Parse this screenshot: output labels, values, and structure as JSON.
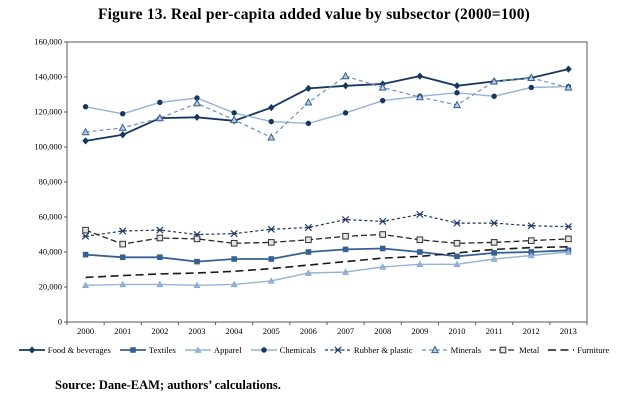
{
  "chart_data": {
    "type": "line",
    "title": "Figure 13. Real per-capita added value by subsector (2000=100)",
    "xlabel": "",
    "ylabel": "",
    "x": [
      2000,
      2001,
      2002,
      2003,
      2004,
      2005,
      2006,
      2007,
      2008,
      2009,
      2010,
      2011,
      2012,
      2013
    ],
    "ylim": [
      0,
      160000
    ],
    "ytick_step": 20000,
    "grid": false,
    "legend_position": "bottom",
    "series": [
      {
        "name": "Food & beverages",
        "color": "#17375E",
        "dash": "solid",
        "width": 1.8,
        "marker": "diamond",
        "marker_color": "#17375E",
        "marker_fill": "#17375E",
        "values": [
          103500,
          107000,
          116500,
          117000,
          115000,
          122500,
          133500,
          135000,
          136000,
          140500,
          135000,
          137500,
          139500,
          144500
        ]
      },
      {
        "name": "Textiles",
        "color": "#376092",
        "dash": "solid",
        "width": 1.8,
        "marker": "square",
        "marker_color": "#376092",
        "marker_fill": "#376092",
        "values": [
          38500,
          37000,
          37000,
          34500,
          36000,
          36000,
          40000,
          41500,
          42000,
          40000,
          37500,
          39500,
          40000,
          41000
        ]
      },
      {
        "name": "Apparel",
        "color": "#95B3D7",
        "dash": "solid",
        "width": 1.4,
        "marker": "triangle",
        "marker_color": "#7BA0CD",
        "marker_fill": "#95B3D7",
        "values": [
          21000,
          21500,
          21500,
          21000,
          21500,
          23500,
          28000,
          28500,
          31500,
          33000,
          33000,
          36000,
          38000,
          40000
        ]
      },
      {
        "name": "Chemicals",
        "color": "#95B3D7",
        "dash": "solid",
        "width": 1.4,
        "marker": "circle",
        "marker_color": "#17375E",
        "marker_fill": "#17375E",
        "values": [
          123000,
          119000,
          125500,
          128000,
          119500,
          114500,
          113500,
          119500,
          126500,
          129000,
          131000,
          129000,
          134000,
          134500
        ]
      },
      {
        "name": "Rubber & plastic",
        "color": "#1F3864",
        "dash": "short-dash",
        "width": 1.2,
        "marker": "asterisk",
        "marker_color": "#1F3864",
        "marker_fill": "none",
        "values": [
          49000,
          52000,
          52500,
          50000,
          50500,
          53000,
          54000,
          58500,
          57500,
          61500,
          56500,
          56500,
          55000,
          54500
        ]
      },
      {
        "name": "Minerals",
        "color": "#6E8EBF",
        "dash": "dash",
        "width": 1.2,
        "marker": "triangle-open",
        "marker_color": "#376092",
        "marker_fill": "#B9CDE5",
        "values": [
          108500,
          111000,
          116500,
          125000,
          115500,
          105500,
          125500,
          140500,
          134000,
          128500,
          124000,
          137500,
          139500,
          134000
        ]
      },
      {
        "name": "Metal",
        "color": "#262626",
        "dash": "med-dash",
        "width": 1.3,
        "marker": "square-open",
        "marker_color": "#333333",
        "marker_fill": "#E8E4EF",
        "values": [
          52500,
          44500,
          48000,
          47500,
          45000,
          45500,
          47000,
          49000,
          50000,
          47000,
          45000,
          45500,
          46500,
          47500
        ]
      },
      {
        "name": "Furniture",
        "color": "#1A1A1A",
        "dash": "long-dash",
        "width": 1.6,
        "marker": "none",
        "marker_color": "#1A1A1A",
        "marker_fill": "none",
        "values": [
          25500,
          26500,
          27500,
          28000,
          29000,
          30500,
          32500,
          34500,
          36500,
          37500,
          39500,
          41500,
          42500,
          43000
        ]
      }
    ],
    "axis_color": "#595959",
    "source": "Source: Dane-EAM; authors’ calculations."
  }
}
